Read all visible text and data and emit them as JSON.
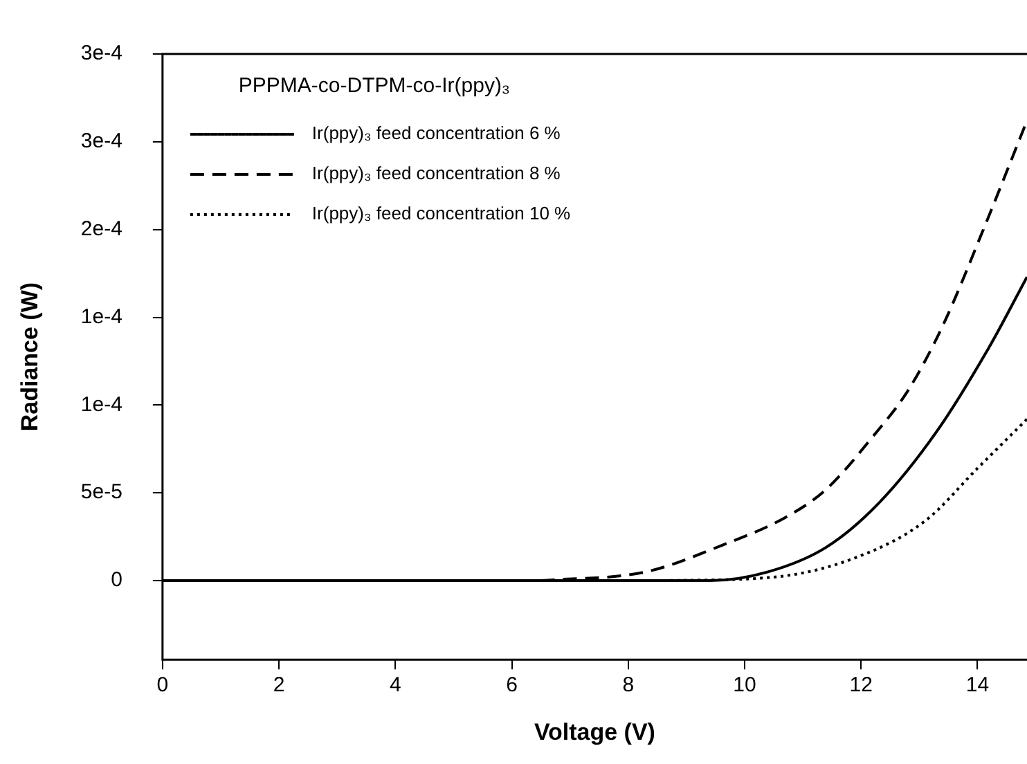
{
  "chart_data": {
    "type": "line",
    "xlabel": "Voltage (V)",
    "ylabel": "Radiance (W)",
    "legend_title": "PPPMA-co-DTPM-co-Ir(ppy)₃",
    "legend": "top left",
    "grid": false,
    "marker": "none",
    "xlim": [
      0,
      14.85
    ],
    "xticks": [
      0,
      2,
      4,
      6,
      8,
      10,
      12,
      14
    ],
    "ylim": [
      -4.5e-05,
      0.0003
    ],
    "yticks": [
      {
        "value": 0,
        "label": "0"
      },
      {
        "value": 5e-05,
        "label": "5e-5"
      },
      {
        "value": 0.0001,
        "label": "1e-4"
      },
      {
        "value": 0.00015,
        "label": "1e-4"
      },
      {
        "value": 0.0002,
        "label": "2e-4"
      },
      {
        "value": 0.00025,
        "label": "3e-4"
      },
      {
        "value": 0.0003,
        "label": "3e-4"
      }
    ],
    "series": [
      {
        "name": "Ir(ppy)₃ feed concentration 6 %",
        "color": "#000000",
        "line_style": "solid",
        "x": [
          0,
          9.4,
          10.4,
          11.4,
          12.3,
          13.3,
          14.2,
          14.85
        ],
        "values": [
          0,
          0,
          5e-06,
          1.9e-05,
          4.4e-05,
          8.5e-05,
          0.000133,
          0.000173
        ]
      },
      {
        "name": "Ir(ppy)₃ feed concentration 8 %",
        "color": "#000000",
        "line_style": "dashed",
        "x": [
          6.5,
          8.3,
          9.6,
          10.7,
          11.4,
          12.2,
          12.8,
          13.4,
          14.1,
          14.85
        ],
        "values": [
          0,
          5e-06,
          2e-05,
          3.6e-05,
          5.2e-05,
          8.2e-05,
          0.000108,
          0.000145,
          0.0002,
          0.000262
        ]
      },
      {
        "name": "Ir(ppy)₃ feed concentration 10 %",
        "color": "#000000",
        "line_style": "dotted",
        "x": [
          8.6,
          10.5,
          11.9,
          13.1,
          14.0,
          14.85
        ],
        "values": [
          0,
          2e-06,
          1.3e-05,
          3.4e-05,
          6.4e-05,
          9.2e-05
        ]
      }
    ]
  }
}
